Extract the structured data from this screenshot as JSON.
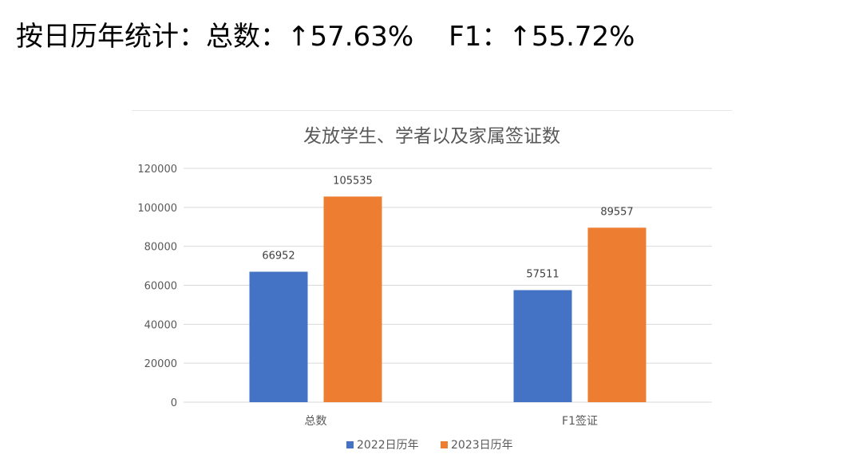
{
  "headline": {
    "prefix": "按日历年统计：总数：↑57.63%",
    "suffix": "F1：↑55.72%"
  },
  "chart_data": {
    "type": "bar",
    "title": "发放学生、学者以及家属签证数",
    "categories": [
      "总数",
      "F1签证"
    ],
    "series": [
      {
        "name": "2022日历年",
        "values": [
          66952,
          57511
        ],
        "color": "#4472C4"
      },
      {
        "name": "2023日历年",
        "values": [
          105535,
          89557
        ],
        "color": "#ED7D31"
      }
    ],
    "ylim": [
      0,
      120000
    ],
    "yticks": [
      0,
      20000,
      40000,
      60000,
      80000,
      100000,
      120000
    ],
    "grid": true,
    "legend": "bottom",
    "xlabel": "",
    "ylabel": ""
  }
}
